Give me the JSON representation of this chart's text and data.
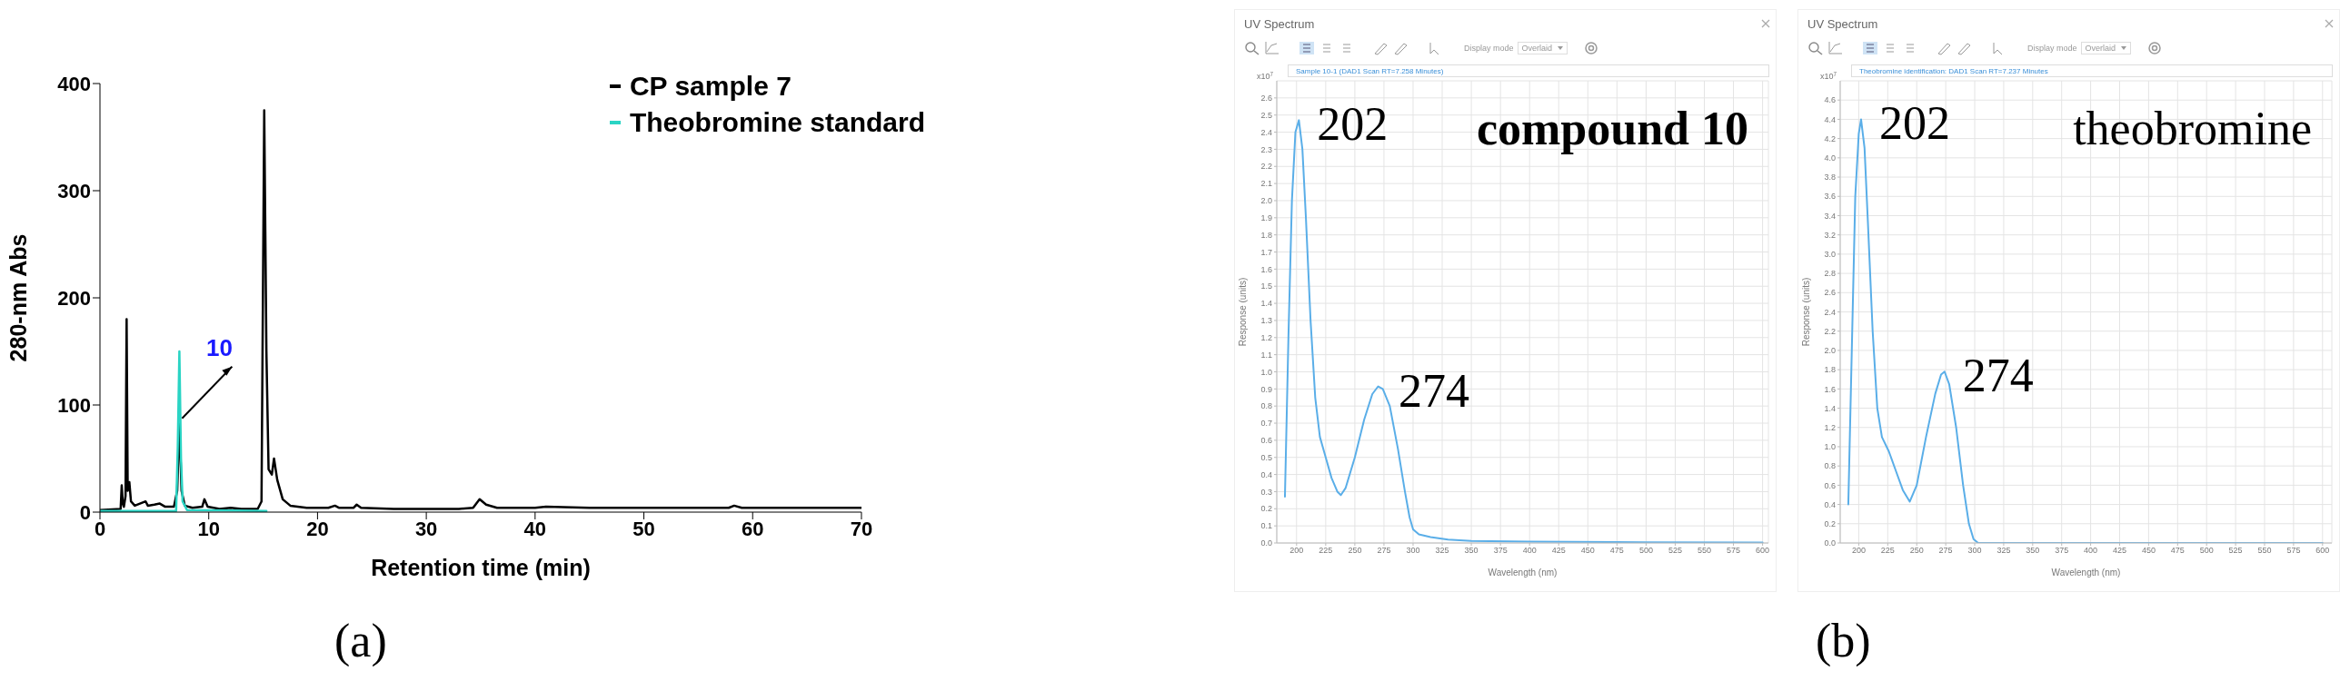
{
  "chart_data": [
    {
      "type": "line",
      "xlabel": "Retention time (min)",
      "ylabel": "280-nm Abs",
      "xlim": [
        0,
        70
      ],
      "ylim": [
        0,
        400
      ],
      "xticks": [
        0,
        10,
        20,
        30,
        40,
        50,
        60,
        70
      ],
      "yticks": [
        0,
        100,
        200,
        300,
        400
      ],
      "legend": "top right",
      "series": [
        {
          "name": "CP sample 7",
          "color": "#000000",
          "x": [
            0,
            1.9,
            2.0,
            2.1,
            2.2,
            2.35,
            2.45,
            2.55,
            2.7,
            2.85,
            3.2,
            4.2,
            4.4,
            5.0,
            5.5,
            6.0,
            6.8,
            7.1,
            7.3,
            7.5,
            7.8,
            8.5,
            9.4,
            9.6,
            9.9,
            11,
            12,
            13,
            14.5,
            14.85,
            15.1,
            15.3,
            15.5,
            15.8,
            16.0,
            16.3,
            16.8,
            17.5,
            19,
            21,
            21.6,
            22,
            23.3,
            23.6,
            24,
            27,
            30,
            33,
            34.3,
            34.9,
            35.5,
            36.5,
            40,
            41,
            45,
            50,
            55,
            57.8,
            58.3,
            59,
            65,
            70
          ],
          "values": [
            2,
            3,
            25,
            8,
            5,
            15,
            180,
            20,
            28,
            10,
            6,
            10,
            6,
            7,
            8,
            5,
            5,
            20,
            85,
            20,
            6,
            4,
            5,
            12,
            5,
            3,
            4,
            3,
            3,
            10,
            375,
            150,
            40,
            35,
            50,
            30,
            12,
            6,
            4,
            4,
            6,
            4,
            4,
            7,
            4,
            3,
            3,
            3,
            4,
            12,
            7,
            4,
            4,
            5,
            4,
            4,
            4,
            4,
            6,
            4,
            4,
            4
          ]
        },
        {
          "name": "Theobromine standard",
          "color": "#2ad4c4",
          "x": [
            0,
            7.0,
            7.15,
            7.3,
            7.45,
            7.6,
            8,
            15.3
          ],
          "values": [
            1,
            1,
            60,
            150,
            50,
            10,
            2,
            1
          ]
        }
      ],
      "annotations": [
        "(a)",
        {
          "text": "10",
          "x": 7.3,
          "y": 85
        }
      ]
    },
    {
      "type": "line",
      "title": "UV Spectrum",
      "subtitle": "Sample 10-1 (DAD1 Scan RT=7.258 Minutes)",
      "xlabel": "Wavelength (nm)",
      "ylabel": "Response (units)",
      "xlim": [
        183,
        605
      ],
      "ylim": [
        0,
        2.7
      ],
      "grid": true,
      "xticks": [
        200,
        225,
        250,
        275,
        300,
        325,
        350,
        375,
        400,
        425,
        450,
        475,
        500,
        525,
        550,
        575,
        600
      ],
      "yticks": [
        {
          "value": 0,
          "label": "0.0"
        },
        0.1,
        0.2,
        0.3,
        0.4,
        0.5,
        0.6,
        0.7,
        0.8,
        0.9,
        {
          "value": 1,
          "label": "1.0"
        },
        1.1,
        1.2,
        1.3,
        1.4,
        1.5,
        1.6,
        1.7,
        1.8,
        1.9,
        {
          "value": 2,
          "label": "2.0"
        },
        2.1,
        2.2,
        2.3,
        2.4,
        2.5,
        2.6
      ],
      "series": [
        {
          "color": "#5aaee8",
          "x": [
            190,
            193,
            196,
            199,
            202,
            205,
            208,
            212,
            216,
            220,
            225,
            230,
            235,
            238,
            242,
            250,
            258,
            265,
            270,
            274,
            280,
            287,
            293,
            297,
            300,
            305,
            315,
            330,
            350,
            400,
            500,
            600
          ],
          "values": [
            0.27,
            1.2,
            2.0,
            2.4,
            2.47,
            2.3,
            1.9,
            1.3,
            0.85,
            0.62,
            0.5,
            0.38,
            0.3,
            0.28,
            0.32,
            0.5,
            0.72,
            0.87,
            0.915,
            0.9,
            0.8,
            0.55,
            0.3,
            0.15,
            0.08,
            0.05,
            0.035,
            0.02,
            0.012,
            0.008,
            0.004,
            0.003
          ]
        }
      ],
      "annotations": [
        "x10$^{7}$",
        "compound 10",
        "Display mode",
        "Overlaid",
        {
          "text": "202",
          "x": 202,
          "y": 2.47
        },
        {
          "text": "274",
          "x": 272,
          "y": 0.915
        }
      ]
    },
    {
      "type": "line",
      "title": "UV Spectrum",
      "subtitle": "Theobromine identification: DAD1 Scan RT=7.237 Minutes",
      "xlabel": "Wavelength (nm)",
      "ylabel": "Response (units)",
      "xlim": [
        184,
        608
      ],
      "ylim": [
        0,
        4.8
      ],
      "grid": true,
      "xticks": [
        200,
        225,
        250,
        275,
        300,
        325,
        350,
        375,
        400,
        425,
        450,
        475,
        500,
        525,
        550,
        575,
        600
      ],
      "yticks": [
        {
          "value": 0,
          "label": "0.0"
        },
        0.2,
        0.4,
        0.6,
        0.8,
        {
          "value": 1,
          "label": "1.0"
        },
        1.2,
        1.4,
        1.6,
        1.8,
        {
          "value": 2,
          "label": "2.0"
        },
        2.2,
        2.4,
        2.6,
        2.8,
        {
          "value": 3,
          "label": "3.0"
        },
        3.2,
        3.4,
        3.6,
        3.8,
        {
          "value": 4,
          "label": "4.0"
        },
        4.2,
        4.4,
        4.6
      ],
      "series": [
        {
          "color": "#5aaee8",
          "x": [
            191,
            194,
            197,
            200,
            202,
            205,
            208,
            212,
            216,
            220,
            226,
            232,
            238,
            244,
            250,
            258,
            266,
            271,
            274,
            278,
            284,
            290,
            295,
            299,
            303,
            350,
            600
          ],
          "values": [
            0.4,
            2.0,
            3.6,
            4.25,
            4.4,
            4.1,
            3.3,
            2.2,
            1.4,
            1.1,
            0.95,
            0.75,
            0.55,
            0.43,
            0.6,
            1.1,
            1.55,
            1.75,
            1.78,
            1.65,
            1.2,
            0.6,
            0.2,
            0.04,
            0,
            0,
            0
          ]
        }
      ],
      "annotations": [
        "x10$^{7}$",
        "theobromine",
        "Display mode",
        "Overlaid",
        "(b)",
        {
          "text": "202",
          "x": 202,
          "y": 4.4
        },
        {
          "text": "274",
          "x": 274,
          "y": 1.78
        }
      ]
    }
  ]
}
